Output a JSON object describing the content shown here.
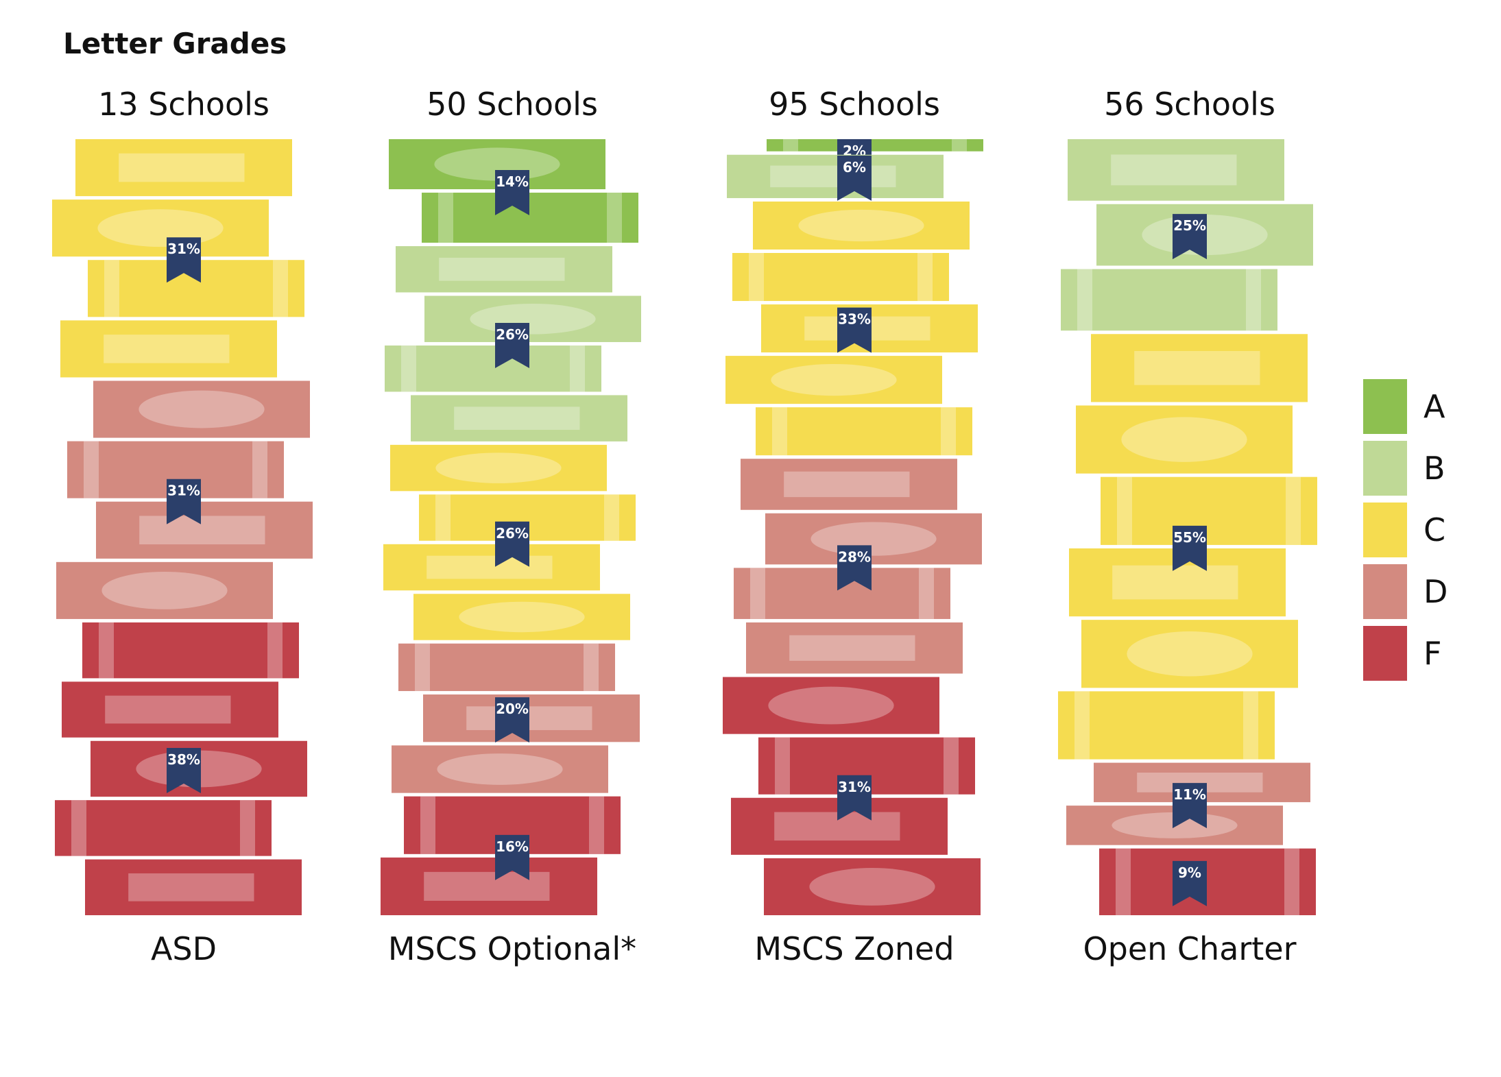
{
  "chart_data": {
    "type": "bar",
    "subtype": "stacked-book-pictogram",
    "title": "Letter Grades",
    "grades": [
      "A",
      "B",
      "C",
      "D",
      "F"
    ],
    "colors": {
      "A": "#8dc050",
      "B": "#bfd996",
      "C": "#f5dc50",
      "D": "#d38a80",
      "F": "#c0414a",
      "flag": "#2b3f6a"
    },
    "legend": [
      {
        "grade": "A",
        "label": "A"
      },
      {
        "grade": "B",
        "label": "B"
      },
      {
        "grade": "C",
        "label": "C"
      },
      {
        "grade": "D",
        "label": "D"
      },
      {
        "grade": "F",
        "label": "F"
      }
    ],
    "groups": [
      {
        "name": "ASD",
        "schools_label": "13 Schools",
        "segments": [
          {
            "grade": "C",
            "percent": 31,
            "label": "31%"
          },
          {
            "grade": "D",
            "percent": 31,
            "label": "31%"
          },
          {
            "grade": "F",
            "percent": 38,
            "label": "38%"
          }
        ]
      },
      {
        "name": "MSCS Optional*",
        "schools_label": "50 Schools",
        "segments": [
          {
            "grade": "A",
            "percent": 14,
            "label": "14%"
          },
          {
            "grade": "B",
            "percent": 26,
            "label": "26%"
          },
          {
            "grade": "C",
            "percent": 26,
            "label": "26%"
          },
          {
            "grade": "D",
            "percent": 20,
            "label": "20%"
          },
          {
            "grade": "F",
            "percent": 16,
            "label": "16%"
          }
        ]
      },
      {
        "name": "MSCS Zoned",
        "schools_label": "95 Schools",
        "segments": [
          {
            "grade": "A",
            "percent": 2,
            "label": "2%"
          },
          {
            "grade": "B",
            "percent": 6,
            "label": "6%"
          },
          {
            "grade": "C",
            "percent": 33,
            "label": "33%"
          },
          {
            "grade": "D",
            "percent": 28,
            "label": "28%"
          },
          {
            "grade": "F",
            "percent": 31,
            "label": "31%"
          }
        ]
      },
      {
        "name": "Open Charter",
        "schools_label": "56 Schools",
        "segments": [
          {
            "grade": "B",
            "percent": 25,
            "label": "25%"
          },
          {
            "grade": "C",
            "percent": 55,
            "label": "55%"
          },
          {
            "grade": "D",
            "percent": 11,
            "label": "11%"
          },
          {
            "grade": "F",
            "percent": 9,
            "label": "9%"
          }
        ]
      }
    ]
  }
}
